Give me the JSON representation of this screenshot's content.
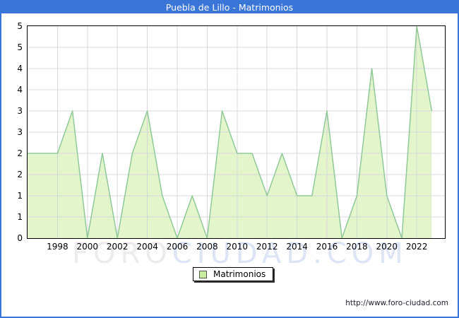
{
  "window": {
    "title": "Puebla de Lillo - Matrimonios"
  },
  "watermark": {
    "part1": "FORO",
    "part2": "CIUDAD.COM"
  },
  "legend": {
    "label": "Matrimonios"
  },
  "footer": {
    "url": "http://www.foro-ciudad.com"
  },
  "colors": {
    "frame_blue": "#3a75d8",
    "plot_border": "#000000",
    "grid": "#d2d2d8",
    "area_fill": "#e3f6cb",
    "area_stroke": "#90c998",
    "legend_swatch_fill": "#c9ed9e",
    "legend_swatch_border": "#565656",
    "watermark_gray": "#ececec",
    "watermark_blue": "#dde4f5",
    "url_text": "#222233",
    "axis_text": "#000000"
  },
  "chart_data": {
    "type": "area",
    "title": "Puebla de Lillo - Matrimonios",
    "xlabel": "",
    "ylabel": "",
    "x": [
      1996,
      1997,
      1998,
      1999,
      2000,
      2001,
      2002,
      2003,
      2004,
      2005,
      2006,
      2007,
      2008,
      2009,
      2010,
      2011,
      2012,
      2013,
      2014,
      2015,
      2016,
      2017,
      2018,
      2019,
      2020,
      2021,
      2022,
      2023
    ],
    "series": [
      {
        "name": "Matrimonios",
        "values": [
          2,
          2,
          2,
          3,
          0,
          2,
          0,
          2,
          3,
          1,
          0,
          1,
          0,
          3,
          2,
          2,
          1,
          2,
          1,
          1,
          3,
          0,
          1,
          4,
          1,
          0,
          5,
          3
        ]
      }
    ],
    "ylim": [
      0,
      5
    ],
    "ytick_step": 0.5,
    "ytick_values": [
      5,
      4.5,
      4,
      3.5,
      3,
      2.5,
      2,
      1.5,
      1,
      0.5,
      0
    ],
    "ytick_labels": [
      "5",
      "5",
      "4",
      "4",
      "3",
      "3",
      "2",
      "2",
      "1",
      "1",
      "0"
    ],
    "xtick_labels": [
      "1998",
      "2000",
      "2002",
      "2004",
      "2006",
      "2008",
      "2010",
      "2012",
      "2014",
      "2016",
      "2018",
      "2020",
      "2022"
    ],
    "grid": true,
    "legend_position": "bottom-center"
  }
}
